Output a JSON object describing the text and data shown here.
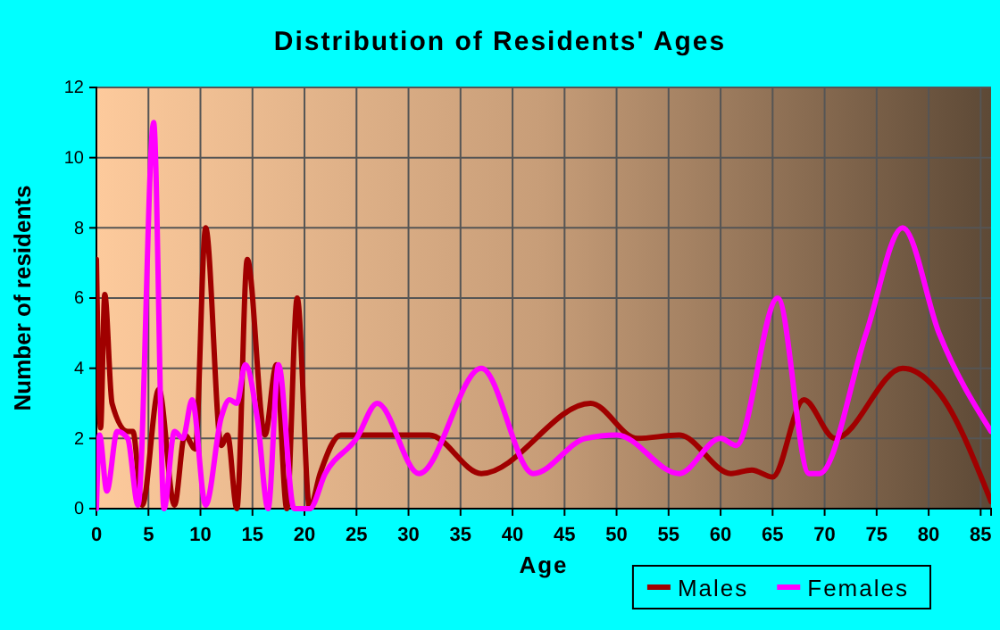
{
  "chart_data": {
    "type": "line",
    "title": "Distribution of Residents' Ages",
    "xlabel": "Age",
    "ylabel": "Number of residents",
    "xlim": [
      0,
      86
    ],
    "xticks": [
      0,
      5,
      10,
      15,
      20,
      25,
      30,
      35,
      40,
      45,
      50,
      55,
      60,
      65,
      70,
      75,
      80,
      85
    ],
    "ylim": [
      0,
      12
    ],
    "yticks": [
      0,
      2,
      4,
      6,
      8,
      10,
      12
    ],
    "grid": true,
    "legend": "bottom right",
    "marker": "none",
    "line_style": "solid",
    "series": [
      {
        "name": "Males",
        "color": "#a00000",
        "x": [
          0,
          0.4,
          0.8,
          1.5,
          3,
          3.5,
          4.4,
          6,
          7.5,
          8.5,
          9.5,
          10.5,
          12,
          12.6,
          13.5,
          14.5,
          16.2,
          17.3,
          18.3,
          19.3,
          20.5,
          21.5,
          23.5,
          28,
          32,
          37,
          47.5,
          52,
          56,
          61,
          63,
          65,
          68,
          71,
          77.5,
          81,
          86
        ],
        "values": [
          7.1,
          2.3,
          6.1,
          3,
          2.2,
          2.2,
          0.1,
          3.4,
          0.1,
          2.1,
          1.7,
          8,
          1.8,
          2.1,
          0,
          7.1,
          2.1,
          4.1,
          0,
          6,
          0,
          1,
          2.1,
          2.1,
          2.1,
          1,
          3,
          2,
          2.1,
          1,
          1.1,
          0.9,
          3.1,
          2,
          4,
          3.3,
          0.2
        ]
      },
      {
        "name": "Females",
        "color": "#ff00ff",
        "x": [
          0,
          0.3,
          1,
          2,
          3,
          4,
          5.5,
          6.5,
          7.5,
          8.3,
          9.2,
          10.5,
          12,
          12.8,
          13.5,
          14.3,
          15.5,
          16.5,
          17.5,
          19,
          20.5,
          22,
          25,
          27,
          31,
          37,
          42,
          47,
          50,
          56,
          60,
          61.5,
          65.5,
          68.5,
          69.5,
          74,
          77.5,
          81,
          86
        ],
        "values": [
          0,
          2.1,
          0.5,
          2.2,
          2,
          0.1,
          11,
          0,
          2.2,
          2,
          3.1,
          0.1,
          2.6,
          3.1,
          3,
          4.1,
          2.5,
          0,
          4.1,
          0,
          0,
          1,
          2,
          3,
          1,
          4,
          1,
          2,
          2.1,
          1,
          2,
          1.8,
          6,
          1,
          1,
          5,
          8,
          5,
          2.2
        ]
      }
    ]
  }
}
